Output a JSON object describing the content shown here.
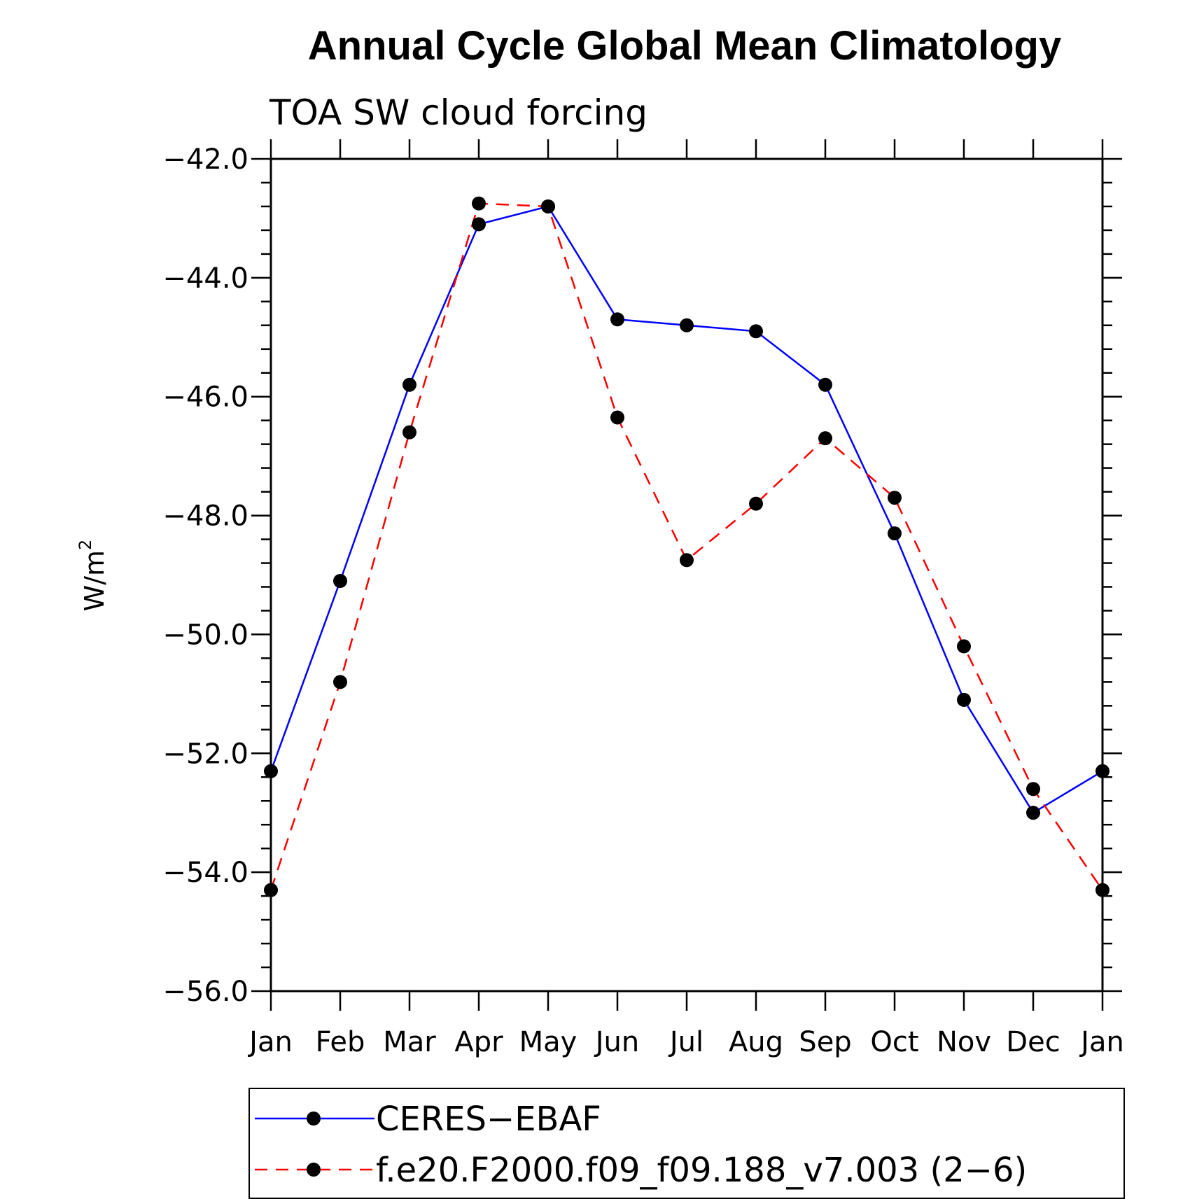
{
  "chart_data": {
    "type": "line",
    "title": "Annual Cycle Global Mean Climatology",
    "subtitle": "TOA SW cloud forcing",
    "ylabel_base": "W/m",
    "ylabel_sup": "2",
    "ylim": [
      -56.0,
      -42.0
    ],
    "yticks": [
      "-42.0",
      "-44.0",
      "-46.0",
      "-48.0",
      "-50.0",
      "-52.0",
      "-54.0",
      "-56.0"
    ],
    "ytick_values": [
      -42.0,
      -44.0,
      -46.0,
      -48.0,
      -50.0,
      -52.0,
      -54.0,
      -56.0
    ],
    "categories": [
      "Jan",
      "Feb",
      "Mar",
      "Apr",
      "May",
      "Jun",
      "Jul",
      "Aug",
      "Sep",
      "Oct",
      "Nov",
      "Dec",
      "Jan"
    ],
    "legend_position": "bottom",
    "series": [
      {
        "name": "CERES−EBAF",
        "color": "#0000ff",
        "dash": "solid",
        "marker": "filled-circle",
        "values": [
          -52.3,
          -49.1,
          -45.8,
          -43.1,
          -42.8,
          -44.7,
          -44.8,
          -44.9,
          -45.8,
          -48.3,
          -51.1,
          -53.0,
          -52.3
        ]
      },
      {
        "name": "f.e20.F2000.f09_f09.188_v7.003 (2−6)",
        "color": "#ff0000",
        "dash": "dashed",
        "marker": "filled-circle",
        "values": [
          -54.3,
          -50.8,
          -46.6,
          -42.75,
          -42.8,
          -46.35,
          -48.75,
          -47.8,
          -46.7,
          -47.7,
          -50.2,
          -52.6,
          -54.3
        ]
      }
    ]
  }
}
